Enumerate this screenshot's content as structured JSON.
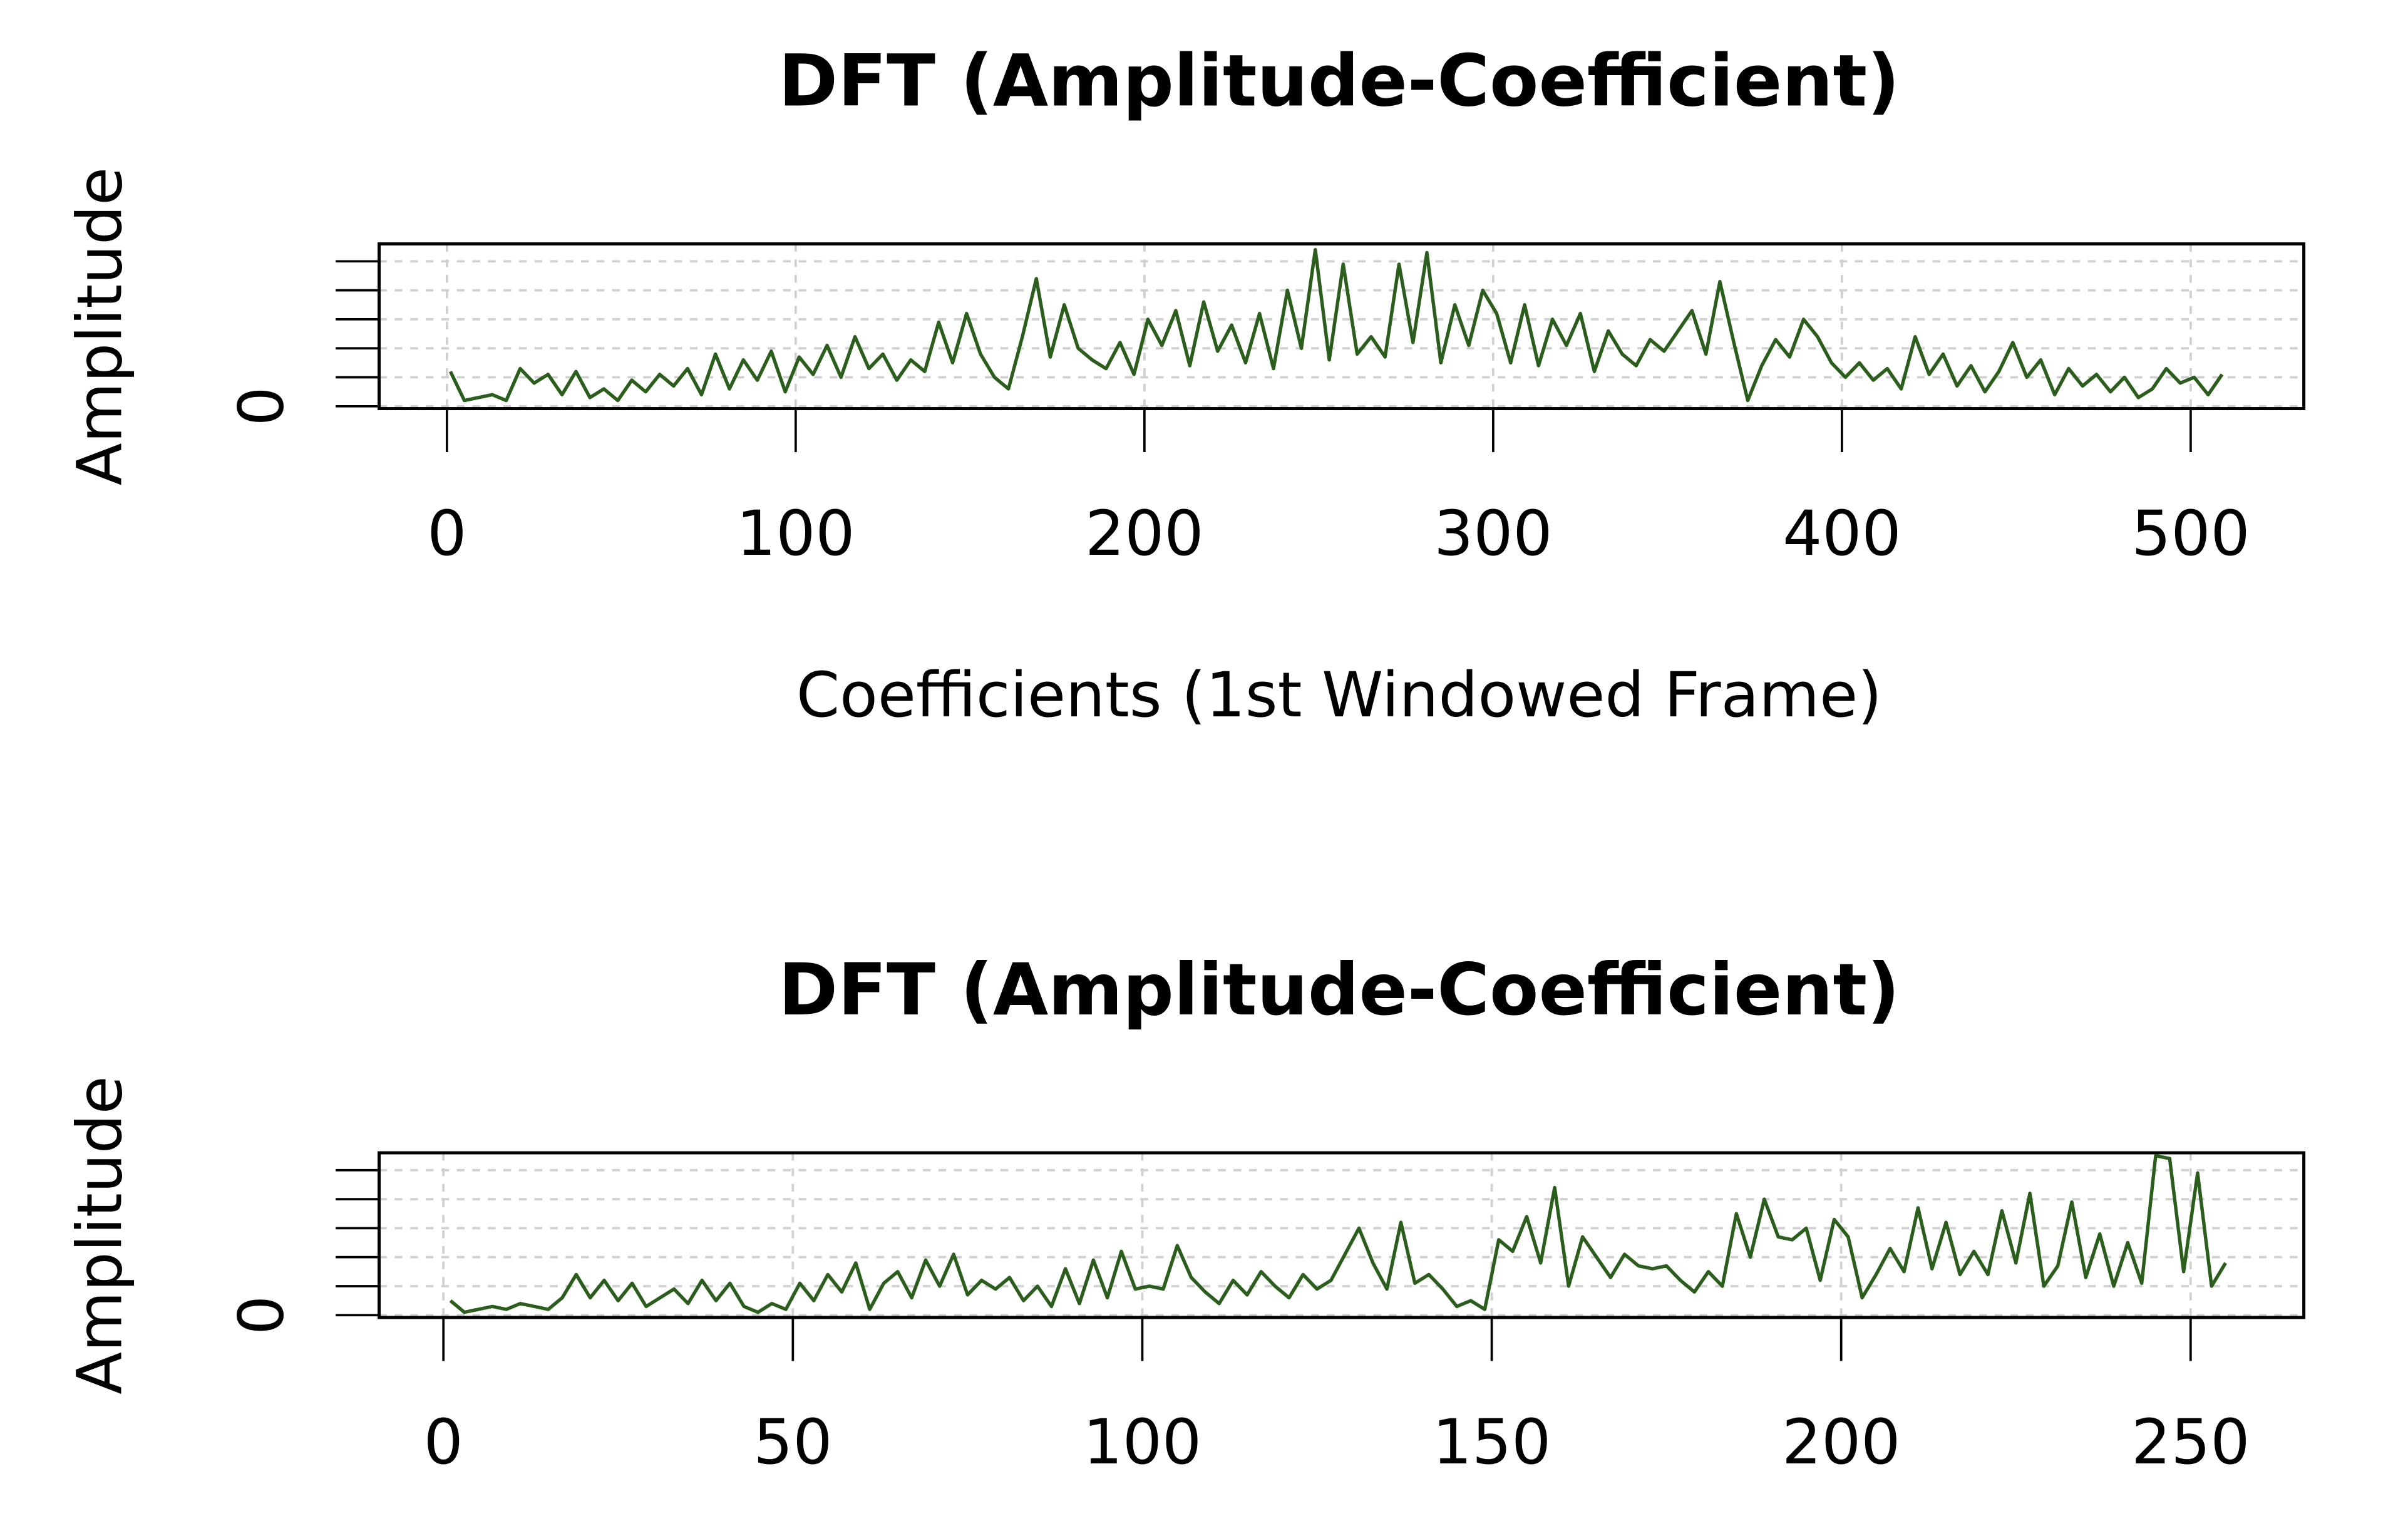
{
  "chart_data": [
    {
      "type": "line",
      "title": "DFT (Amplitude-Coefficient)",
      "xlabel": "Coefficients (1st Windowed Frame)",
      "ylabel": "Amplitude",
      "color": "#2b5e1c",
      "grid": true,
      "xlim": [
        -19.44,
        532.44
      ],
      "ylim": [
        -0.08,
        5.6
      ],
      "xticks": [
        0,
        100,
        200,
        300,
        400,
        500
      ],
      "yticks": [
        0,
        {
          "value": 1,
          "label": null
        },
        {
          "value": 2,
          "label": null
        },
        {
          "value": 3,
          "label": null
        },
        {
          "value": 4,
          "label": null
        },
        {
          "value": 5,
          "label": null
        }
      ],
      "x": [
        1,
        5,
        9,
        13,
        17,
        21,
        25,
        29,
        33,
        37,
        41,
        45,
        49,
        53,
        57,
        61,
        65,
        69,
        73,
        77,
        81,
        85,
        89,
        93,
        97,
        101,
        105,
        109,
        113,
        117,
        121,
        125,
        129,
        133,
        137,
        141,
        145,
        149,
        153,
        157,
        161,
        165,
        169,
        173,
        177,
        181,
        185,
        189,
        193,
        197,
        201,
        205,
        209,
        213,
        217,
        221,
        225,
        229,
        233,
        237,
        241,
        245,
        249,
        253,
        257,
        261,
        265,
        269,
        273,
        277,
        281,
        285,
        289,
        293,
        297,
        301,
        305,
        309,
        313,
        317,
        321,
        325,
        329,
        333,
        337,
        341,
        345,
        349,
        353,
        357,
        361,
        365,
        369,
        373,
        377,
        381,
        385,
        389,
        393,
        397,
        401,
        405,
        409,
        413,
        417,
        421,
        425,
        429,
        433,
        437,
        441,
        445,
        449,
        453,
        457,
        461,
        465,
        469,
        473,
        477,
        481,
        485,
        489,
        493,
        497,
        501,
        505,
        509
      ],
      "values": [
        1.2,
        0.2,
        0.3,
        0.4,
        0.2,
        1.3,
        0.8,
        1.1,
        0.4,
        1.2,
        0.3,
        0.6,
        0.2,
        0.9,
        0.5,
        1.1,
        0.7,
        1.3,
        0.4,
        1.8,
        0.6,
        1.6,
        0.9,
        1.9,
        0.5,
        1.7,
        1.1,
        2.1,
        1.0,
        2.4,
        1.3,
        1.8,
        0.9,
        1.6,
        1.2,
        2.9,
        1.5,
        3.2,
        1.8,
        1.0,
        0.6,
        2.4,
        4.4,
        1.7,
        3.5,
        2.0,
        1.6,
        1.3,
        2.2,
        1.1,
        3.0,
        2.1,
        3.3,
        1.4,
        3.6,
        1.9,
        2.8,
        1.5,
        3.2,
        1.3,
        4.0,
        2.0,
        5.4,
        1.6,
        4.9,
        1.8,
        2.4,
        1.7,
        4.9,
        2.2,
        5.3,
        1.5,
        3.5,
        2.1,
        4.0,
        3.2,
        1.5,
        3.5,
        1.4,
        3.0,
        2.1,
        3.2,
        1.2,
        2.6,
        1.8,
        1.4,
        2.3,
        1.9,
        2.6,
        3.3,
        1.8,
        4.3,
        2.2,
        0.2,
        1.4,
        2.3,
        1.7,
        3.0,
        2.4,
        1.5,
        1.0,
        1.5,
        0.9,
        1.3,
        0.6,
        2.4,
        1.1,
        1.8,
        0.7,
        1.4,
        0.5,
        1.2,
        2.2,
        1.0,
        1.6,
        0.4,
        1.3,
        0.7,
        1.1,
        0.5,
        1.0,
        0.3,
        0.6,
        1.3,
        0.8,
        1.0,
        0.4,
        1.1
      ]
    },
    {
      "type": "line",
      "title": "DFT (Amplitude-Coefficient)",
      "ylabel": "Amplitude",
      "color": "#2b5e1c",
      "grid": true,
      "xlim": [
        -9.2,
        266.2
      ],
      "ylim": [
        -0.08,
        5.6
      ],
      "xticks": [
        0,
        50,
        100,
        150,
        200,
        250
      ],
      "yticks": [
        0,
        {
          "value": 1,
          "label": null
        },
        {
          "value": 2,
          "label": null
        },
        {
          "value": 3,
          "label": null
        },
        {
          "value": 4,
          "label": null
        },
        {
          "value": 5,
          "label": null
        }
      ],
      "x": [
        1,
        3,
        5,
        7,
        9,
        11,
        13,
        15,
        17,
        19,
        21,
        23,
        25,
        27,
        29,
        31,
        33,
        35,
        37,
        39,
        41,
        43,
        45,
        47,
        49,
        51,
        53,
        55,
        57,
        59,
        61,
        63,
        65,
        67,
        69,
        71,
        73,
        75,
        77,
        79,
        81,
        83,
        85,
        87,
        89,
        91,
        93,
        95,
        97,
        99,
        101,
        103,
        105,
        107,
        109,
        111,
        113,
        115,
        117,
        119,
        121,
        123,
        125,
        127,
        129,
        131,
        133,
        135,
        137,
        139,
        141,
        143,
        145,
        147,
        149,
        151,
        153,
        155,
        157,
        159,
        161,
        163,
        165,
        167,
        169,
        171,
        173,
        175,
        177,
        179,
        181,
        183,
        185,
        187,
        189,
        191,
        193,
        195,
        197,
        199,
        201,
        203,
        205,
        207,
        209,
        211,
        213,
        215,
        217,
        219,
        221,
        223,
        225,
        227,
        229,
        231,
        233,
        235,
        237,
        239,
        241,
        243,
        245,
        247,
        249,
        251,
        253,
        255
      ],
      "values": [
        0.5,
        0.1,
        0.2,
        0.3,
        0.2,
        0.4,
        0.3,
        0.2,
        0.6,
        1.4,
        0.6,
        1.2,
        0.5,
        1.1,
        0.3,
        0.6,
        0.9,
        0.4,
        1.2,
        0.5,
        1.1,
        0.3,
        0.1,
        0.4,
        0.2,
        1.1,
        0.5,
        1.4,
        0.8,
        1.8,
        0.2,
        1.1,
        1.5,
        0.6,
        1.9,
        1.0,
        2.1,
        0.7,
        1.2,
        0.9,
        1.3,
        0.5,
        1.0,
        0.3,
        1.6,
        0.4,
        1.9,
        0.6,
        2.2,
        0.9,
        1.0,
        0.9,
        2.4,
        1.3,
        0.8,
        0.4,
        1.2,
        0.7,
        1.5,
        1.0,
        0.6,
        1.4,
        0.9,
        1.2,
        2.1,
        3.0,
        1.8,
        0.9,
        3.2,
        1.1,
        1.4,
        0.9,
        0.3,
        0.5,
        0.2,
        2.6,
        2.2,
        3.4,
        1.8,
        4.4,
        1.0,
        2.7,
        2.0,
        1.3,
        2.1,
        1.7,
        1.6,
        1.7,
        1.2,
        0.8,
        1.5,
        1.0,
        3.5,
        2.0,
        4.0,
        2.7,
        2.6,
        3.0,
        1.2,
        3.3,
        2.7,
        0.6,
        1.4,
        2.3,
        1.5,
        3.7,
        1.6,
        3.2,
        1.4,
        2.2,
        1.4,
        3.6,
        1.8,
        4.2,
        1.0,
        1.7,
        3.9,
        1.3,
        2.8,
        1.0,
        2.5,
        1.1,
        5.5,
        5.4,
        1.5,
        4.9,
        1.0,
        1.8
      ]
    }
  ]
}
